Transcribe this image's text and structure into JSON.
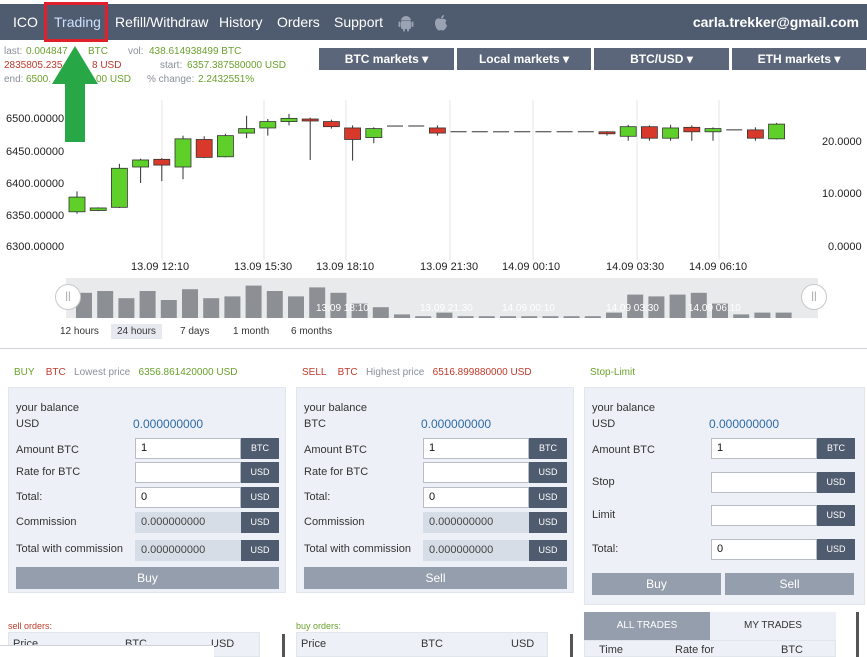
{
  "nav": {
    "items": [
      "ICO",
      "Trading",
      "Refill/Withdraw",
      "History",
      "Orders",
      "Support"
    ],
    "active": "Trading",
    "icons": [
      "android-icon",
      "apple-icon"
    ],
    "user": "carla.trekker@gmail.com"
  },
  "stats": {
    "last_label": "last:",
    "last_btc": "0.004847",
    "last_btc_unit": "BTC",
    "last_usd": "2835805.235",
    "last_usd_unit": "8 USD",
    "end_label": "end:",
    "end_value": "6500.",
    "end_tail": "00 USD",
    "vol_label": "vol:",
    "vol_value": "438.614938499 BTC",
    "start_label": "start:",
    "start_value": "6357.387580000 USD",
    "change_label": "% change:",
    "change_value": "2.2432551%"
  },
  "markets": [
    "BTC markets",
    "Local markets",
    "BTC/USD",
    "ETH markets"
  ],
  "chart_data": {
    "type": "candlestick",
    "y_left_ticks": [
      "6500.00000",
      "6450.00000",
      "6400.00000",
      "6350.00000",
      "6300.00000"
    ],
    "y_right_ticks": [
      "20.0000",
      "10.0000",
      "0.0000"
    ],
    "x_ticks": [
      "13.09 12:10",
      "13.09 15:30",
      "13.09 18:10",
      "13.09 21:30",
      "14.09 00:10",
      "14.09 03:30",
      "14.09 06:10"
    ],
    "ylim": [
      6300,
      6520
    ],
    "candles": [
      {
        "o": 6355,
        "c": 6378,
        "h": 6387,
        "l": 6352
      },
      {
        "o": 6357,
        "c": 6361,
        "h": 6362,
        "l": 6356
      },
      {
        "o": 6362,
        "c": 6423,
        "h": 6430,
        "l": 6361
      },
      {
        "o": 6425,
        "c": 6436,
        "h": 6438,
        "l": 6400
      },
      {
        "o": 6437,
        "c": 6428,
        "h": 6439,
        "l": 6403
      },
      {
        "o": 6425,
        "c": 6469,
        "h": 6474,
        "l": 6406
      },
      {
        "o": 6468,
        "c": 6440,
        "h": 6473,
        "l": 6439
      },
      {
        "o": 6441,
        "c": 6474,
        "h": 6477,
        "l": 6440
      },
      {
        "o": 6478,
        "c": 6485,
        "h": 6505,
        "l": 6470
      },
      {
        "o": 6486,
        "c": 6496,
        "h": 6500,
        "l": 6474
      },
      {
        "o": 6496,
        "c": 6501,
        "h": 6508,
        "l": 6490
      },
      {
        "o": 6500,
        "c": 6497,
        "h": 6502,
        "l": 6436
      },
      {
        "o": 6496,
        "c": 6488,
        "h": 6499,
        "l": 6485
      },
      {
        "o": 6486,
        "c": 6468,
        "h": 6490,
        "l": 6435
      },
      {
        "o": 6471,
        "c": 6485,
        "h": 6487,
        "l": 6462
      },
      {
        "o": 6489,
        "c": 6489,
        "h": 6489,
        "l": 6489
      },
      {
        "o": 6489,
        "c": 6489,
        "h": 6489,
        "l": 6489
      },
      {
        "o": 6486,
        "c": 6478,
        "h": 6490,
        "l": 6474
      },
      {
        "o": 6480,
        "c": 6480,
        "h": 6480,
        "l": 6480
      },
      {
        "o": 6480,
        "c": 6480,
        "h": 6480,
        "l": 6480
      },
      {
        "o": 6480,
        "c": 6480,
        "h": 6480,
        "l": 6480
      },
      {
        "o": 6480,
        "c": 6480,
        "h": 6480,
        "l": 6480
      },
      {
        "o": 6480,
        "c": 6480,
        "h": 6480,
        "l": 6480
      },
      {
        "o": 6480,
        "c": 6480,
        "h": 6480,
        "l": 6480
      },
      {
        "o": 6480,
        "c": 6480,
        "h": 6480,
        "l": 6480
      },
      {
        "o": 6480,
        "c": 6478,
        "h": 6481,
        "l": 6474
      },
      {
        "o": 6473,
        "c": 6488,
        "h": 6491,
        "l": 6466
      },
      {
        "o": 6488,
        "c": 6470,
        "h": 6490,
        "l": 6466
      },
      {
        "o": 6470,
        "c": 6486,
        "h": 6491,
        "l": 6466
      },
      {
        "o": 6487,
        "c": 6480,
        "h": 6490,
        "l": 6466
      },
      {
        "o": 6480,
        "c": 6485,
        "h": 6487,
        "l": 6466
      },
      {
        "o": 6483,
        "c": 6483,
        "h": 6483,
        "l": 6483
      },
      {
        "o": 6483,
        "c": 6470,
        "h": 6487,
        "l": 6466
      },
      {
        "o": 6469,
        "c": 6492,
        "h": 6494,
        "l": 6468
      }
    ],
    "volumes": [
      14,
      15,
      11,
      15,
      10,
      16,
      11,
      12,
      18,
      15,
      12,
      17,
      14,
      8,
      6,
      2,
      1,
      3,
      1,
      1,
      1,
      1,
      1,
      1,
      1,
      3,
      13,
      12,
      13,
      14,
      8,
      2,
      3,
      3
    ],
    "navigator_labels": [
      "13.09 18:10",
      "13.09 21:30",
      "14.09 00:10",
      "14.09 03:30",
      "14.09 06:10"
    ]
  },
  "ranges": [
    "12 hours",
    "24 hours",
    "7 days",
    "1 month",
    "6 months"
  ],
  "active_range": "24 hours",
  "buy": {
    "title": "BUY",
    "currency": "BTC",
    "price_label": "Lowest price",
    "price": "6356.861420000 USD",
    "balance_label": "your balance",
    "balance_currency": "USD",
    "balance": "0.000000000",
    "amount_label": "Amount BTC",
    "amount": "1",
    "rate_label": "Rate for BTC",
    "total_label": "Total:",
    "total": "0",
    "commission_label": "Commission",
    "commission": "0.000000000",
    "twc_label": "Total with commission",
    "twc": "0.000000000",
    "unit_btc": "BTC",
    "unit_usd": "USD",
    "button": "Buy"
  },
  "sell": {
    "title": "SELL",
    "currency": "BTC",
    "price_label": "Highest price",
    "price": "6516.899880000 USD",
    "balance_label": "your balance",
    "balance_currency": "BTC",
    "balance": "0.000000000",
    "amount_label": "Amount BTC",
    "amount": "1",
    "rate_label": "Rate for BTC",
    "total_label": "Total:",
    "total": "0",
    "commission_label": "Commission",
    "commission": "0.000000000",
    "twc_label": "Total with commission",
    "twc": "0.000000000",
    "unit_btc": "BTC",
    "unit_usd": "USD",
    "button": "Sell"
  },
  "stop": {
    "title": "Stop-Limit",
    "balance_label": "your balance",
    "balance_currency": "USD",
    "balance": "0.000000000",
    "amount_label": "Amount BTC",
    "amount": "1",
    "stop_label": "Stop",
    "limit_label": "Limit",
    "total_label": "Total:",
    "total": "0",
    "unit_btc": "BTC",
    "unit_usd": "USD",
    "buy_button": "Buy",
    "sell_button": "Sell"
  },
  "sell_orders": {
    "label": "sell orders:",
    "cols": [
      "Price",
      "BTC",
      "USD"
    ]
  },
  "buy_orders": {
    "label": "buy orders:",
    "cols": [
      "Price",
      "BTC",
      "USD"
    ]
  },
  "trades": {
    "tabs": [
      "ALL TRADES",
      "MY TRADES"
    ],
    "cols": [
      "Time",
      "Rate for",
      "BTC"
    ]
  },
  "colors": {
    "nav_bg": "#4f5b6e",
    "up": "#5fd02a",
    "down": "#d9392b",
    "accent": "#2f6aa8"
  }
}
